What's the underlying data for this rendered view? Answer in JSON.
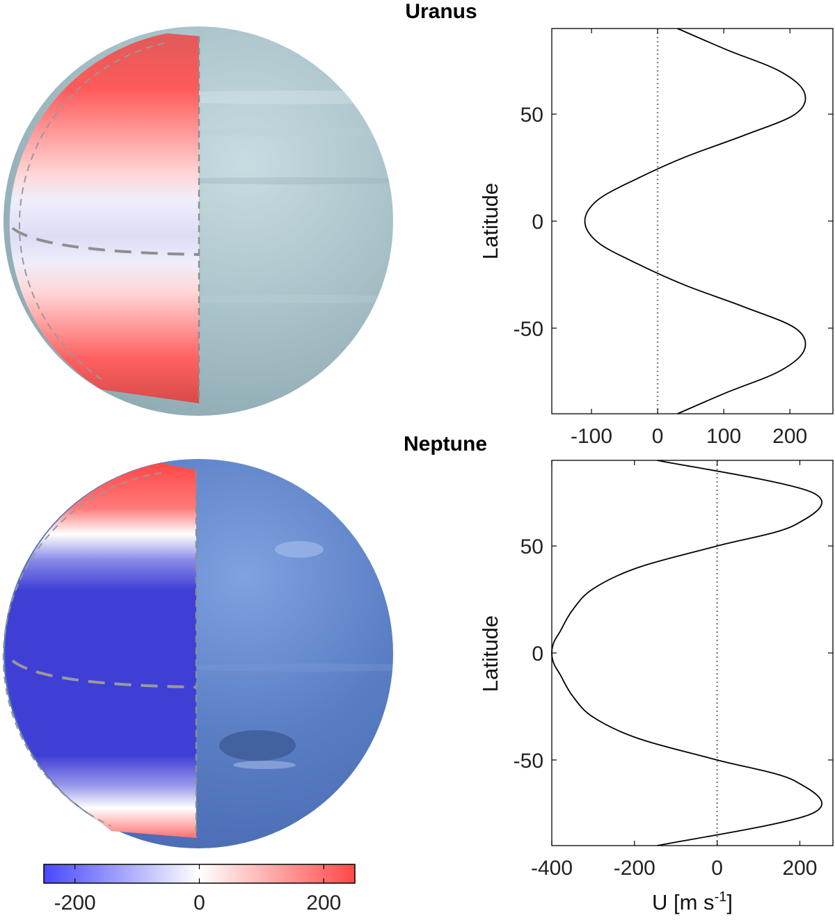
{
  "colors": {
    "wind_negative": "#3f3fd6",
    "wind_positive": "#ff4d4d",
    "uranus_surface": "#9fb8c0",
    "neptune_surface": "#5a7fc4",
    "profile_line": "#000000",
    "zero_line": "#888888"
  },
  "colorbar": {
    "name": "colorbar",
    "range": [
      -250,
      250
    ],
    "ticks": [
      {
        "value": -200,
        "label": "-200"
      },
      {
        "value": 0,
        "label": "0"
      },
      {
        "value": 200,
        "label": "200"
      }
    ]
  },
  "chart_data": [
    {
      "type": "line",
      "title": "Uranus",
      "xlabel": "",
      "ylabel": "Latitude",
      "xlim": [
        -160,
        265
      ],
      "ylim": [
        -90,
        90
      ],
      "xticks": [
        -100,
        0,
        100,
        200
      ],
      "yticks": [
        -50,
        0,
        50
      ],
      "zero_line": 0,
      "series": [
        {
          "x": [
            30,
            105,
            185,
            222,
            208,
            130,
            42,
            -30,
            -90,
            -110,
            -90,
            -30,
            42,
            130,
            208,
            222,
            185,
            105,
            30
          ],
          "y": [
            -90,
            -80,
            -70,
            -60,
            -50,
            -40,
            -30,
            -20,
            -10,
            0,
            10,
            20,
            30,
            40,
            50,
            60,
            70,
            80,
            90
          ]
        }
      ]
    },
    {
      "type": "line",
      "title": "Neptune",
      "xlabel": "U [m s-1]",
      "ylabel": "Latitude",
      "xlim": [
        -400,
        280
      ],
      "ylim": [
        -90,
        90
      ],
      "xticks": [
        -400,
        -200,
        0,
        200
      ],
      "yticks": [
        -50,
        0,
        50
      ],
      "zero_line": 0,
      "series": [
        {
          "x": [
            -145,
            230,
            190,
            0,
            -190,
            -300,
            -350,
            -380,
            -395,
            -400,
            -395,
            -380,
            -350,
            -300,
            -190,
            0,
            190,
            230,
            -145
          ],
          "y": [
            -90,
            -75,
            -60,
            -50,
            -40,
            -30,
            -20,
            -10,
            -5,
            0,
            5,
            10,
            20,
            30,
            40,
            50,
            60,
            75,
            90
          ]
        }
      ]
    }
  ]
}
